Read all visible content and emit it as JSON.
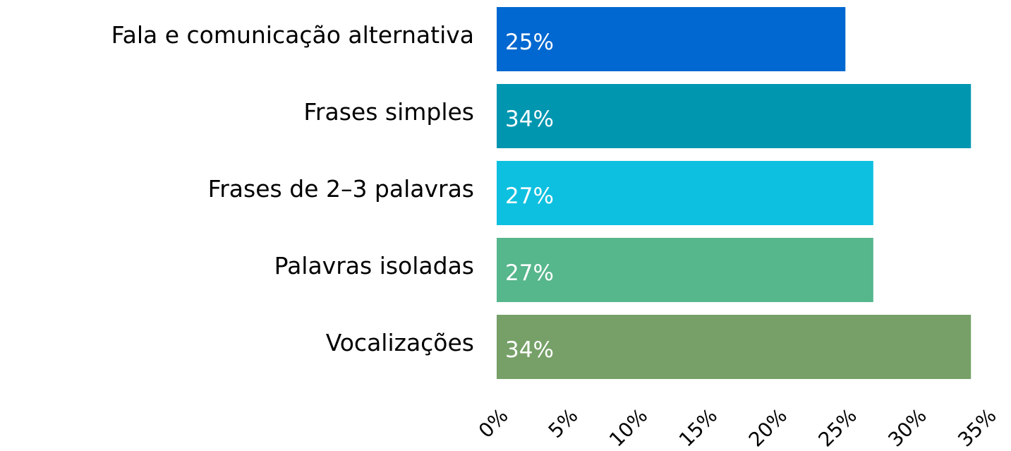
{
  "chart_data": {
    "type": "barh",
    "categories": [
      "Fala e comunicação alternativa",
      "Frases simples",
      "Frases de 2–3 palavras",
      "Palavras isoladas",
      "Vocalizações"
    ],
    "values": [
      25,
      34,
      27,
      27,
      34
    ],
    "value_labels": [
      "25%",
      "34%",
      "27%",
      "27%",
      "34%"
    ],
    "colors": [
      "#0068d0",
      "#0096b0",
      "#0ec0e0",
      "#56b68c",
      "#76a068"
    ],
    "xlim": [
      0,
      35
    ],
    "xticks": [
      {
        "value": 0,
        "label": "0%"
      },
      {
        "value": 5,
        "label": "5%"
      },
      {
        "value": 10,
        "label": "10%"
      },
      {
        "value": 15,
        "label": "15%"
      },
      {
        "value": 20,
        "label": "20%"
      },
      {
        "value": 25,
        "label": "25%"
      },
      {
        "value": 30,
        "label": "30%"
      },
      {
        "value": 35,
        "label": "35%"
      }
    ],
    "grid": false
  }
}
